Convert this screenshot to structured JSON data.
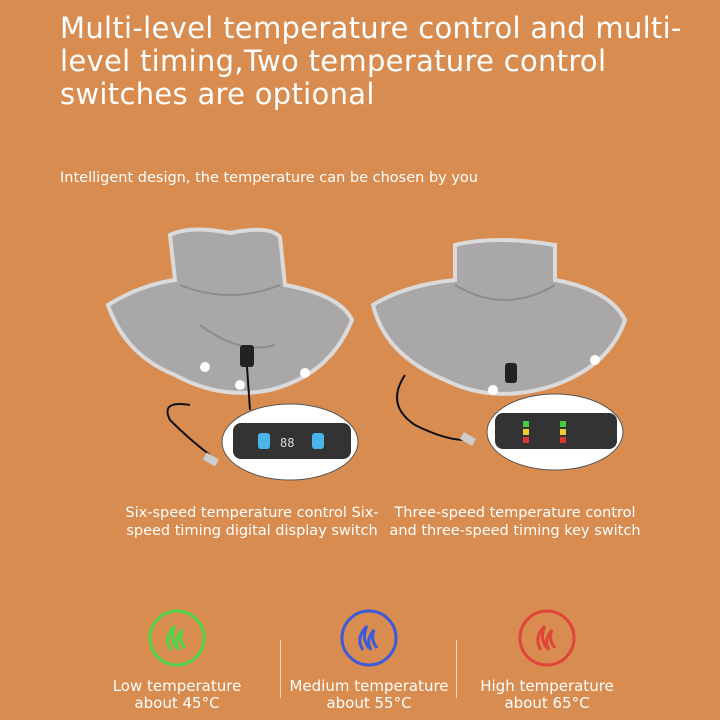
{
  "header": {
    "title": "Multi-level temperature control and multi-level timing,Two temperature control switches are optional",
    "subtitle": "Intelligent design, the temperature can be chosen by you"
  },
  "products": [
    {
      "caption": "Six-speed temperature control Six-speed timing digital display switch",
      "controller": "digital-display",
      "display_value": "88"
    },
    {
      "caption": "Three-speed temperature control and three-speed timing key switch",
      "controller": "key-switch"
    }
  ],
  "temperatures": [
    {
      "label": "Low temperature",
      "value": "about 45°C",
      "color": "#4fd64a",
      "icon": "flame-icon"
    },
    {
      "label": "Medium temperature",
      "value": "about 55°C",
      "color": "#3d5bd8",
      "icon": "flame-icon"
    },
    {
      "label": "High temperature",
      "value": "about 65°C",
      "color": "#e0453a",
      "icon": "flame-icon"
    }
  ],
  "colors": {
    "background": "#d98c50",
    "wrap": "#a9a7a8",
    "edge": "#d9d9d9"
  }
}
